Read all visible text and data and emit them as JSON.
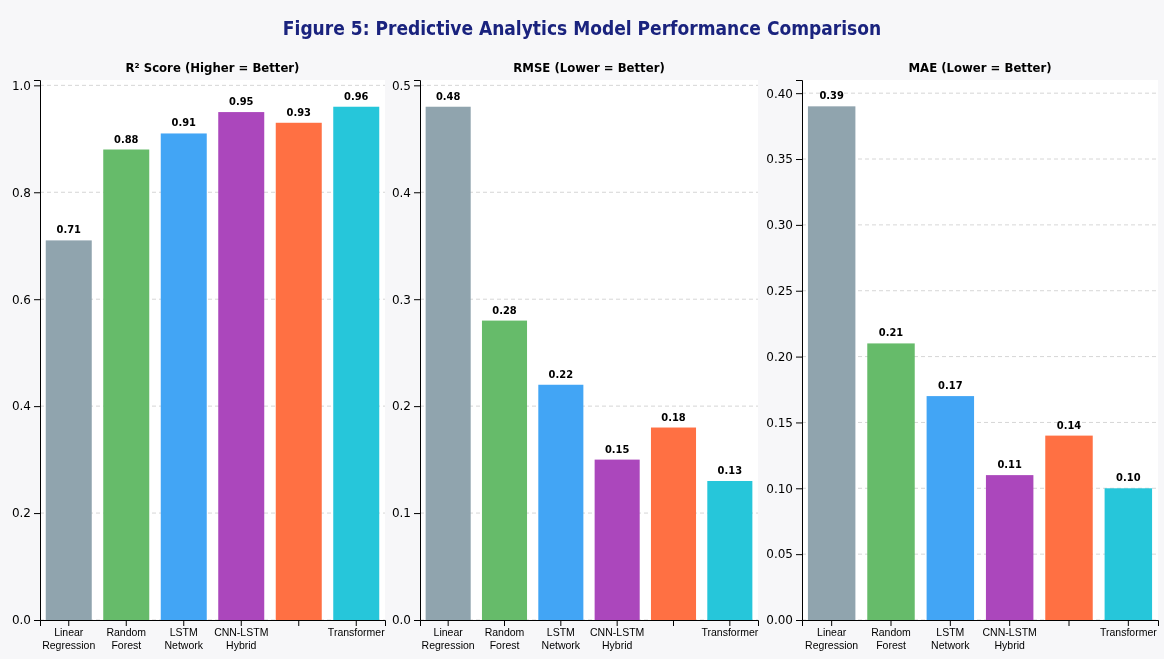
{
  "chart_data": [
    {
      "type": "bar",
      "title": "R² Score (Higher = Better)",
      "annotations": [
        "Figure 5: Predictive Analytics Model Performance Comparison"
      ],
      "categories": [
        "Linear\nRegression",
        "Random\nForest",
        "LSTM\nNetwork",
        "CNN-LSTM\nHybrid",
        null,
        "Transformer"
      ],
      "values": [
        0.71,
        0.88,
        0.91,
        0.95,
        0.93,
        0.96
      ],
      "value_labels": [
        "0.71",
        "0.88",
        "0.91",
        "0.95",
        "0.93",
        "0.96"
      ],
      "colors": [
        "#90a4ae",
        "#66bb6a",
        "#42a5f5",
        "#ab47bc",
        "#ff7043",
        "#26c6da"
      ],
      "ylim": [
        0,
        1.01
      ],
      "yticks": [
        {
          "value": 0,
          "label": "0.0"
        },
        {
          "value": 0.2,
          "label": "0.2"
        },
        {
          "value": 0.4,
          "label": "0.4"
        },
        {
          "value": 0.6,
          "label": "0.6"
        },
        {
          "value": 0.8,
          "label": "0.8"
        },
        {
          "value": 1,
          "label": "1.0"
        }
      ],
      "grid": "y"
    },
    {
      "type": "bar",
      "title": "RMSE (Lower = Better)",
      "categories": [
        "Linear\nRegression",
        "Random\nForest",
        "LSTM\nNetwork",
        "CNN-LSTM\nHybrid",
        null,
        "Transformer"
      ],
      "values": [
        0.48,
        0.28,
        0.22,
        0.15,
        0.18,
        0.13
      ],
      "value_labels": [
        "0.48",
        "0.28",
        "0.22",
        "0.15",
        "0.18",
        "0.13"
      ],
      "colors": [
        "#90a4ae",
        "#66bb6a",
        "#42a5f5",
        "#ab47bc",
        "#ff7043",
        "#26c6da"
      ],
      "ylim": [
        0,
        0.505
      ],
      "yticks": [
        {
          "value": 0,
          "label": "0.0"
        },
        {
          "value": 0.1,
          "label": "0.1"
        },
        {
          "value": 0.2,
          "label": "0.2"
        },
        {
          "value": 0.3,
          "label": "0.3"
        },
        {
          "value": 0.4,
          "label": "0.4"
        },
        {
          "value": 0.5,
          "label": "0.5"
        }
      ],
      "grid": "y"
    },
    {
      "type": "bar",
      "title": "MAE (Lower = Better)",
      "categories": [
        "Linear\nRegression",
        "Random\nForest",
        "LSTM\nNetwork",
        "CNN-LSTM\nHybrid",
        null,
        "Transformer"
      ],
      "values": [
        0.39,
        0.21,
        0.17,
        0.11,
        0.14,
        0.1
      ],
      "value_labels": [
        "0.39",
        "0.21",
        "0.17",
        "0.11",
        "0.14",
        "0.10"
      ],
      "colors": [
        "#90a4ae",
        "#66bb6a",
        "#42a5f5",
        "#ab47bc",
        "#ff7043",
        "#26c6da"
      ],
      "ylim": [
        0,
        0.41
      ],
      "yticks": [
        {
          "value": 0,
          "label": "0.00"
        },
        {
          "value": 0.05,
          "label": "0.05"
        },
        {
          "value": 0.1,
          "label": "0.10"
        },
        {
          "value": 0.15,
          "label": "0.15"
        },
        {
          "value": 0.2,
          "label": "0.20"
        },
        {
          "value": 0.25,
          "label": "0.25"
        },
        {
          "value": 0.3,
          "label": "0.30"
        },
        {
          "value": 0.35,
          "label": "0.35"
        },
        {
          "value": 0.4,
          "label": "0.40"
        }
      ],
      "grid": "y"
    }
  ]
}
